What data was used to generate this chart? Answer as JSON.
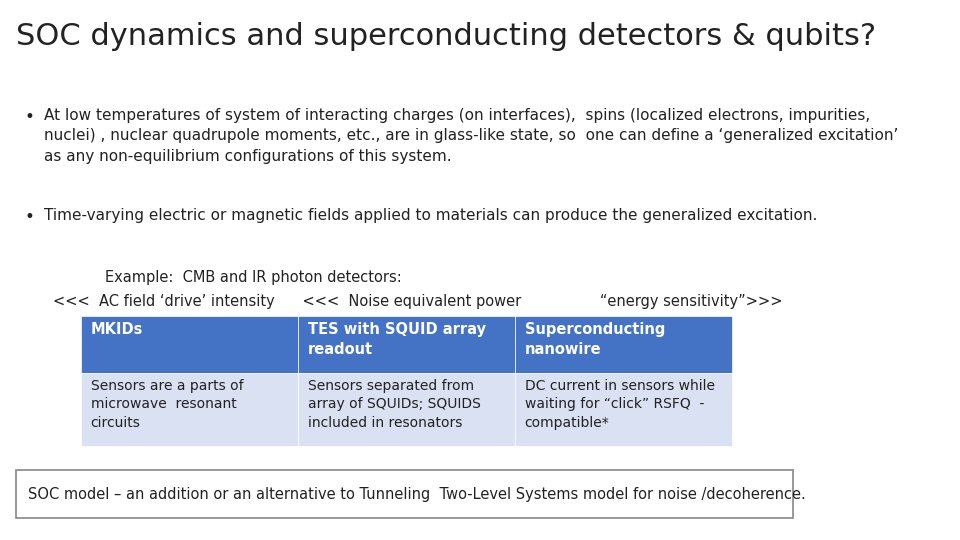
{
  "title": "SOC dynamics and superconducting detectors & qubits?",
  "bullet1_line1": "At low temperatures of system of interacting charges (on interfaces),  spins (localized electrons, impurities,",
  "bullet1_line2": "nuclei) , nuclear quadrupole moments, etc., are in glass-like state, so  one can define a ‘generalized excitation’",
  "bullet1_line3": "as any non-equilibrium configurations of this system.",
  "bullet2": "Time-varying electric or magnetic fields applied to materials can produce the generalized excitation.",
  "example_line1": "Example:  CMB and IR photon detectors:",
  "example_line2": "<<<  AC field ‘drive’ intensity      <<<  Noise equivalent power                 “energy sensitivity”>>>",
  "table_header_color": "#4472C4",
  "table_header_text_color": "#FFFFFF",
  "table_body_bg": "#D9E1F2",
  "table_col1_header": "MKIDs",
  "table_col2_header": "TES with SQUID array\nreadout",
  "table_col3_header": "Superconducting\nnanowire",
  "table_col1_body": "Sensors are a parts of\nmicrowave  resonant\ncircuits",
  "table_col2_body": "Sensors separated from\narray of SQUIDs; SQUIDS\nincluded in resonators",
  "table_col3_body": "DC current in sensors while\nwaiting for “click” RSFQ  -\ncompatible*",
  "footer": "SOC model – an addition or an alternative to Tunneling  Two-Level Systems model for noise /decoherence.",
  "bg_color": "#FFFFFF",
  "title_fontsize": 22,
  "body_fontsize": 11,
  "table_fontsize": 10.5,
  "footer_fontsize": 10.5
}
